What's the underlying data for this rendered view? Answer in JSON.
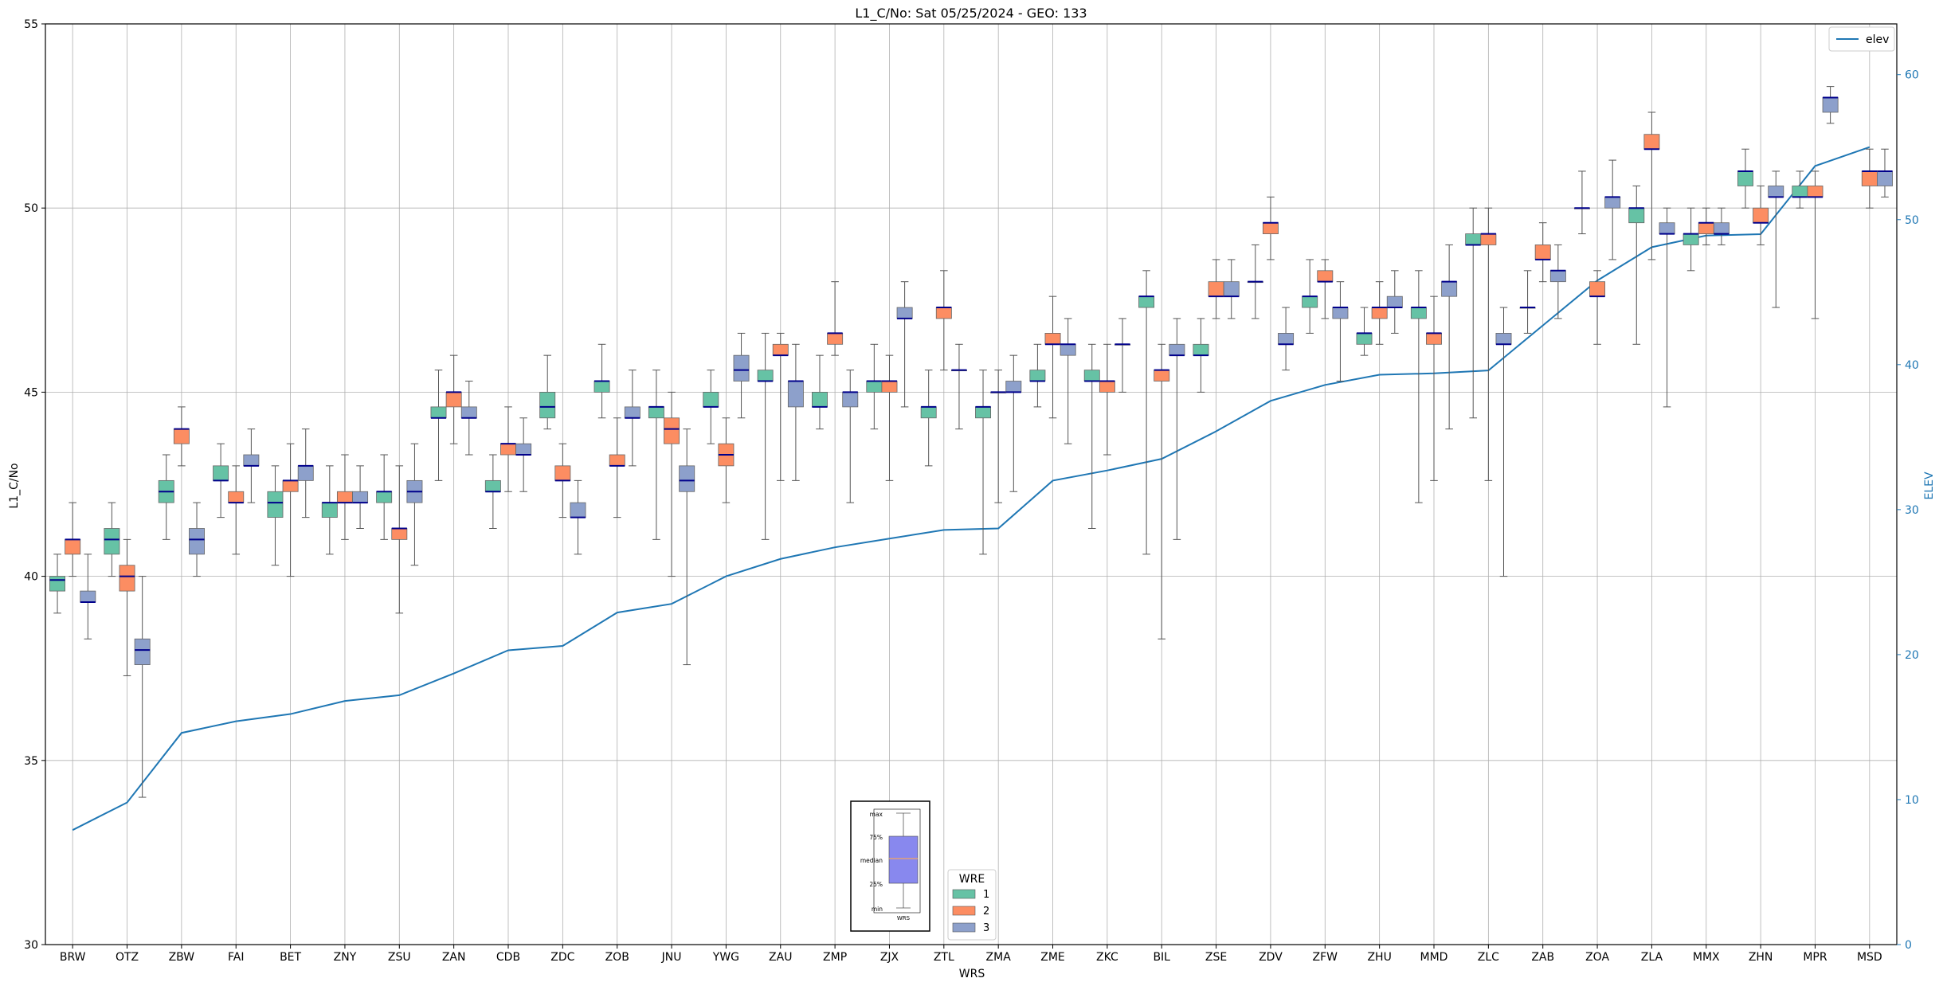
{
  "chart_data": {
    "type": "box",
    "title": "L1_C/No: Sat 05/25/2024 - GEO: 133",
    "xlabel": "WRS",
    "ylabel": "L1_C/No",
    "y2label": "ELEV",
    "ylim": [
      30,
      55
    ],
    "y2lim": [
      0,
      63.5
    ],
    "yticks": [
      30,
      35,
      40,
      45,
      50,
      55
    ],
    "y2ticks": [
      0,
      10,
      20,
      30,
      40,
      50,
      60
    ],
    "grid": true,
    "categories": [
      "BRW",
      "OTZ",
      "ZBW",
      "FAI",
      "BET",
      "ZNY",
      "ZSU",
      "ZAN",
      "CDB",
      "ZDC",
      "ZOB",
      "JNU",
      "YWG",
      "ZAU",
      "ZMP",
      "ZJX",
      "ZTL",
      "ZMA",
      "ZME",
      "ZKC",
      "BIL",
      "ZSE",
      "ZDV",
      "ZFW",
      "ZHU",
      "MMD",
      "ZLC",
      "ZAB",
      "ZOA",
      "ZLA",
      "MMX",
      "ZHN",
      "MPR",
      "MSD"
    ],
    "wre_colors": {
      "1": "#66c2a5",
      "2": "#fc8d62",
      "3": "#8da0cb"
    },
    "median_color": "#00008b",
    "elev_color": "#1f77b4",
    "elev_series": {
      "name": "elev",
      "values": [
        7.9,
        9.8,
        14.6,
        15.4,
        15.9,
        16.8,
        17.2,
        18.7,
        20.3,
        20.6,
        22.9,
        23.5,
        25.4,
        26.6,
        27.4,
        28.0,
        28.6,
        28.7,
        32.0,
        32.7,
        33.5,
        35.4,
        37.5,
        38.6,
        39.3,
        39.4,
        39.6,
        42.7,
        45.8,
        48.1,
        48.9,
        49.0,
        53.7,
        55.0
      ]
    },
    "boxes": [
      {
        "site": "BRW",
        "wre": 1,
        "min": 39.0,
        "q1": 39.6,
        "median": 39.9,
        "q3": 40.0,
        "max": 40.6
      },
      {
        "site": "BRW",
        "wre": 2,
        "min": 40.0,
        "q1": 40.6,
        "median": 41.0,
        "q3": 41.0,
        "max": 42.0
      },
      {
        "site": "BRW",
        "wre": 3,
        "min": 38.3,
        "q1": 39.3,
        "median": 39.3,
        "q3": 39.6,
        "max": 40.6
      },
      {
        "site": "OTZ",
        "wre": 1,
        "min": 40.0,
        "q1": 40.6,
        "median": 41.0,
        "q3": 41.3,
        "max": 42.0
      },
      {
        "site": "OTZ",
        "wre": 2,
        "min": 37.3,
        "q1": 39.6,
        "median": 40.0,
        "q3": 40.3,
        "max": 41.0
      },
      {
        "site": "OTZ",
        "wre": 3,
        "min": 34.0,
        "q1": 37.6,
        "median": 38.0,
        "q3": 38.3,
        "max": 40.0
      },
      {
        "site": "ZBW",
        "wre": 1,
        "min": 41.0,
        "q1": 42.0,
        "median": 42.3,
        "q3": 42.6,
        "max": 43.3
      },
      {
        "site": "ZBW",
        "wre": 2,
        "min": 43.0,
        "q1": 43.6,
        "median": 44.0,
        "q3": 44.0,
        "max": 44.6
      },
      {
        "site": "ZBW",
        "wre": 3,
        "min": 40.0,
        "q1": 40.6,
        "median": 41.0,
        "q3": 41.3,
        "max": 42.0
      },
      {
        "site": "FAI",
        "wre": 1,
        "min": 41.6,
        "q1": 42.6,
        "median": 42.6,
        "q3": 43.0,
        "max": 43.6
      },
      {
        "site": "FAI",
        "wre": 2,
        "min": 40.6,
        "q1": 42.0,
        "median": 42.0,
        "q3": 42.3,
        "max": 43.0
      },
      {
        "site": "FAI",
        "wre": 3,
        "min": 42.0,
        "q1": 43.0,
        "median": 43.0,
        "q3": 43.3,
        "max": 44.0
      },
      {
        "site": "BET",
        "wre": 1,
        "min": 40.3,
        "q1": 41.6,
        "median": 42.0,
        "q3": 42.3,
        "max": 43.0
      },
      {
        "site": "BET",
        "wre": 2,
        "min": 40.0,
        "q1": 42.3,
        "median": 42.6,
        "q3": 42.6,
        "max": 43.6
      },
      {
        "site": "BET",
        "wre": 3,
        "min": 41.6,
        "q1": 42.6,
        "median": 43.0,
        "q3": 43.0,
        "max": 44.0
      },
      {
        "site": "ZNY",
        "wre": 1,
        "min": 40.6,
        "q1": 41.6,
        "median": 42.0,
        "q3": 42.0,
        "max": 43.0
      },
      {
        "site": "ZNY",
        "wre": 2,
        "min": 41.0,
        "q1": 42.0,
        "median": 42.0,
        "q3": 42.3,
        "max": 43.3
      },
      {
        "site": "ZNY",
        "wre": 3,
        "min": 41.3,
        "q1": 42.0,
        "median": 42.0,
        "q3": 42.3,
        "max": 43.0
      },
      {
        "site": "ZSU",
        "wre": 1,
        "min": 41.0,
        "q1": 42.0,
        "median": 42.3,
        "q3": 42.3,
        "max": 43.3
      },
      {
        "site": "ZSU",
        "wre": 2,
        "min": 39.0,
        "q1": 41.0,
        "median": 41.3,
        "q3": 41.3,
        "max": 43.0
      },
      {
        "site": "ZSU",
        "wre": 3,
        "min": 40.3,
        "q1": 42.0,
        "median": 42.3,
        "q3": 42.6,
        "max": 43.6
      },
      {
        "site": "ZAN",
        "wre": 1,
        "min": 42.6,
        "q1": 44.3,
        "median": 44.3,
        "q3": 44.6,
        "max": 45.6
      },
      {
        "site": "ZAN",
        "wre": 2,
        "min": 43.6,
        "q1": 44.6,
        "median": 45.0,
        "q3": 45.0,
        "max": 46.0
      },
      {
        "site": "ZAN",
        "wre": 3,
        "min": 43.3,
        "q1": 44.3,
        "median": 44.3,
        "q3": 44.6,
        "max": 45.3
      },
      {
        "site": "CDB",
        "wre": 1,
        "min": 41.3,
        "q1": 42.3,
        "median": 42.3,
        "q3": 42.6,
        "max": 43.3
      },
      {
        "site": "CDB",
        "wre": 2,
        "min": 42.3,
        "q1": 43.3,
        "median": 43.6,
        "q3": 43.6,
        "max": 44.6
      },
      {
        "site": "CDB",
        "wre": 3,
        "min": 42.3,
        "q1": 43.3,
        "median": 43.3,
        "q3": 43.6,
        "max": 44.3
      },
      {
        "site": "ZDC",
        "wre": 1,
        "min": 44.0,
        "q1": 44.3,
        "median": 44.6,
        "q3": 45.0,
        "max": 46.0
      },
      {
        "site": "ZDC",
        "wre": 2,
        "min": 41.6,
        "q1": 42.6,
        "median": 42.6,
        "q3": 43.0,
        "max": 43.6
      },
      {
        "site": "ZDC",
        "wre": 3,
        "min": 40.6,
        "q1": 41.6,
        "median": 41.6,
        "q3": 42.0,
        "max": 42.6
      },
      {
        "site": "ZOB",
        "wre": 1,
        "min": 44.3,
        "q1": 45.0,
        "median": 45.3,
        "q3": 45.3,
        "max": 46.3
      },
      {
        "site": "ZOB",
        "wre": 2,
        "min": 41.6,
        "q1": 43.0,
        "median": 43.0,
        "q3": 43.3,
        "max": 44.3
      },
      {
        "site": "ZOB",
        "wre": 3,
        "min": 43.0,
        "q1": 44.3,
        "median": 44.3,
        "q3": 44.6,
        "max": 45.6
      },
      {
        "site": "JNU",
        "wre": 1,
        "min": 41.0,
        "q1": 44.3,
        "median": 44.6,
        "q3": 44.6,
        "max": 45.6
      },
      {
        "site": "JNU",
        "wre": 2,
        "min": 40.0,
        "q1": 43.6,
        "median": 44.0,
        "q3": 44.3,
        "max": 45.0
      },
      {
        "site": "JNU",
        "wre": 3,
        "min": 37.6,
        "q1": 42.3,
        "median": 42.6,
        "q3": 43.0,
        "max": 44.0
      },
      {
        "site": "YWG",
        "wre": 1,
        "min": 43.6,
        "q1": 44.6,
        "median": 44.6,
        "q3": 45.0,
        "max": 45.6
      },
      {
        "site": "YWG",
        "wre": 2,
        "min": 42.0,
        "q1": 43.0,
        "median": 43.3,
        "q3": 43.6,
        "max": 44.3
      },
      {
        "site": "YWG",
        "wre": 3,
        "min": 44.3,
        "q1": 45.3,
        "median": 45.6,
        "q3": 46.0,
        "max": 46.6
      },
      {
        "site": "ZAU",
        "wre": 1,
        "min": 41.0,
        "q1": 45.3,
        "median": 45.3,
        "q3": 45.6,
        "max": 46.6
      },
      {
        "site": "ZAU",
        "wre": 2,
        "min": 42.6,
        "q1": 46.0,
        "median": 46.0,
        "q3": 46.3,
        "max": 46.6
      },
      {
        "site": "ZAU",
        "wre": 3,
        "min": 42.6,
        "q1": 44.6,
        "median": 45.3,
        "q3": 45.3,
        "max": 46.3
      },
      {
        "site": "ZMP",
        "wre": 1,
        "min": 44.0,
        "q1": 44.6,
        "median": 44.6,
        "q3": 45.0,
        "max": 46.0
      },
      {
        "site": "ZMP",
        "wre": 2,
        "min": 46.0,
        "q1": 46.3,
        "median": 46.6,
        "q3": 46.6,
        "max": 48.0
      },
      {
        "site": "ZMP",
        "wre": 3,
        "min": 42.0,
        "q1": 44.6,
        "median": 45.0,
        "q3": 45.0,
        "max": 45.6
      },
      {
        "site": "ZJX",
        "wre": 1,
        "min": 44.0,
        "q1": 45.0,
        "median": 45.3,
        "q3": 45.3,
        "max": 46.3
      },
      {
        "site": "ZJX",
        "wre": 2,
        "min": 42.6,
        "q1": 45.0,
        "median": 45.3,
        "q3": 45.3,
        "max": 46.0
      },
      {
        "site": "ZJX",
        "wre": 3,
        "min": 44.6,
        "q1": 47.0,
        "median": 47.0,
        "q3": 47.3,
        "max": 48.0
      },
      {
        "site": "ZTL",
        "wre": 1,
        "min": 43.0,
        "q1": 44.3,
        "median": 44.6,
        "q3": 44.6,
        "max": 45.6
      },
      {
        "site": "ZTL",
        "wre": 2,
        "min": 45.6,
        "q1": 47.0,
        "median": 47.3,
        "q3": 47.3,
        "max": 48.3
      },
      {
        "site": "ZTL",
        "wre": 3,
        "min": 44.0,
        "q1": 45.6,
        "median": 45.6,
        "q3": 45.6,
        "max": 46.3
      },
      {
        "site": "ZMA",
        "wre": 1,
        "min": 40.6,
        "q1": 44.3,
        "median": 44.6,
        "q3": 44.6,
        "max": 45.6
      },
      {
        "site": "ZMA",
        "wre": 2,
        "min": 42.0,
        "q1": 45.0,
        "median": 45.0,
        "q3": 45.0,
        "max": 45.6
      },
      {
        "site": "ZMA",
        "wre": 3,
        "min": 42.3,
        "q1": 45.0,
        "median": 45.0,
        "q3": 45.3,
        "max": 46.0
      },
      {
        "site": "ZME",
        "wre": 1,
        "min": 44.6,
        "q1": 45.3,
        "median": 45.3,
        "q3": 45.6,
        "max": 46.3
      },
      {
        "site": "ZME",
        "wre": 2,
        "min": 44.3,
        "q1": 46.3,
        "median": 46.3,
        "q3": 46.6,
        "max": 47.6
      },
      {
        "site": "ZME",
        "wre": 3,
        "min": 43.6,
        "q1": 46.0,
        "median": 46.3,
        "q3": 46.3,
        "max": 47.0
      },
      {
        "site": "ZKC",
        "wre": 1,
        "min": 41.3,
        "q1": 45.3,
        "median": 45.3,
        "q3": 45.6,
        "max": 46.3
      },
      {
        "site": "ZKC",
        "wre": 2,
        "min": 43.3,
        "q1": 45.0,
        "median": 45.3,
        "q3": 45.3,
        "max": 46.3
      },
      {
        "site": "ZKC",
        "wre": 3,
        "min": 45.0,
        "q1": 46.3,
        "median": 46.3,
        "q3": 46.3,
        "max": 47.0
      },
      {
        "site": "BIL",
        "wre": 1,
        "min": 40.6,
        "q1": 47.3,
        "median": 47.6,
        "q3": 47.6,
        "max": 48.3
      },
      {
        "site": "BIL",
        "wre": 2,
        "min": 38.3,
        "q1": 45.3,
        "median": 45.6,
        "q3": 45.6,
        "max": 46.3
      },
      {
        "site": "BIL",
        "wre": 3,
        "min": 41.0,
        "q1": 46.0,
        "median": 46.0,
        "q3": 46.3,
        "max": 47.0
      },
      {
        "site": "ZSE",
        "wre": 1,
        "min": 45.0,
        "q1": 46.0,
        "median": 46.0,
        "q3": 46.3,
        "max": 47.0
      },
      {
        "site": "ZSE",
        "wre": 2,
        "min": 47.0,
        "q1": 47.6,
        "median": 47.6,
        "q3": 48.0,
        "max": 48.6
      },
      {
        "site": "ZSE",
        "wre": 3,
        "min": 47.0,
        "q1": 47.6,
        "median": 47.6,
        "q3": 48.0,
        "max": 48.6
      },
      {
        "site": "ZDV",
        "wre": 1,
        "min": 47.0,
        "q1": 48.0,
        "median": 48.0,
        "q3": 48.0,
        "max": 49.0
      },
      {
        "site": "ZDV",
        "wre": 2,
        "min": 48.6,
        "q1": 49.3,
        "median": 49.6,
        "q3": 49.6,
        "max": 50.3
      },
      {
        "site": "ZDV",
        "wre": 3,
        "min": 45.6,
        "q1": 46.3,
        "median": 46.3,
        "q3": 46.6,
        "max": 47.3
      },
      {
        "site": "ZFW",
        "wre": 1,
        "min": 46.6,
        "q1": 47.3,
        "median": 47.6,
        "q3": 47.6,
        "max": 48.6
      },
      {
        "site": "ZFW",
        "wre": 2,
        "min": 47.0,
        "q1": 48.0,
        "median": 48.0,
        "q3": 48.3,
        "max": 48.6
      },
      {
        "site": "ZFW",
        "wre": 3,
        "min": 45.3,
        "q1": 47.0,
        "median": 47.3,
        "q3": 47.3,
        "max": 48.0
      },
      {
        "site": "ZHU",
        "wre": 1,
        "min": 46.0,
        "q1": 46.3,
        "median": 46.6,
        "q3": 46.6,
        "max": 47.3
      },
      {
        "site": "ZHU",
        "wre": 2,
        "min": 46.3,
        "q1": 47.0,
        "median": 47.3,
        "q3": 47.3,
        "max": 48.0
      },
      {
        "site": "ZHU",
        "wre": 3,
        "min": 46.6,
        "q1": 47.3,
        "median": 47.3,
        "q3": 47.6,
        "max": 48.3
      },
      {
        "site": "MMD",
        "wre": 1,
        "min": 42.0,
        "q1": 47.0,
        "median": 47.3,
        "q3": 47.3,
        "max": 48.3
      },
      {
        "site": "MMD",
        "wre": 2,
        "min": 42.6,
        "q1": 46.3,
        "median": 46.6,
        "q3": 46.6,
        "max": 47.6
      },
      {
        "site": "MMD",
        "wre": 3,
        "min": 44.0,
        "q1": 47.6,
        "median": 48.0,
        "q3": 48.0,
        "max": 49.0
      },
      {
        "site": "ZLC",
        "wre": 1,
        "min": 44.3,
        "q1": 49.0,
        "median": 49.0,
        "q3": 49.3,
        "max": 50.0
      },
      {
        "site": "ZLC",
        "wre": 2,
        "min": 42.6,
        "q1": 49.0,
        "median": 49.3,
        "q3": 49.3,
        "max": 50.0
      },
      {
        "site": "ZLC",
        "wre": 3,
        "min": 40.0,
        "q1": 46.3,
        "median": 46.3,
        "q3": 46.6,
        "max": 47.3
      },
      {
        "site": "ZAB",
        "wre": 1,
        "min": 46.6,
        "q1": 47.3,
        "median": 47.3,
        "q3": 47.3,
        "max": 48.3
      },
      {
        "site": "ZAB",
        "wre": 2,
        "min": 48.0,
        "q1": 48.6,
        "median": 48.6,
        "q3": 49.0,
        "max": 49.6
      },
      {
        "site": "ZAB",
        "wre": 3,
        "min": 47.0,
        "q1": 48.0,
        "median": 48.3,
        "q3": 48.3,
        "max": 49.0
      },
      {
        "site": "ZOA",
        "wre": 1,
        "min": 49.3,
        "q1": 50.0,
        "median": 50.0,
        "q3": 50.0,
        "max": 51.0
      },
      {
        "site": "ZOA",
        "wre": 2,
        "min": 46.3,
        "q1": 47.6,
        "median": 47.6,
        "q3": 48.0,
        "max": 48.3
      },
      {
        "site": "ZOA",
        "wre": 3,
        "min": 48.6,
        "q1": 50.0,
        "median": 50.3,
        "q3": 50.3,
        "max": 51.3
      },
      {
        "site": "ZLA",
        "wre": 1,
        "min": 46.3,
        "q1": 49.6,
        "median": 50.0,
        "q3": 50.0,
        "max": 50.6
      },
      {
        "site": "ZLA",
        "wre": 2,
        "min": 48.6,
        "q1": 51.6,
        "median": 51.6,
        "q3": 52.0,
        "max": 52.6
      },
      {
        "site": "ZLA",
        "wre": 3,
        "min": 44.6,
        "q1": 49.3,
        "median": 49.3,
        "q3": 49.6,
        "max": 50.0
      },
      {
        "site": "MMX",
        "wre": 1,
        "min": 48.3,
        "q1": 49.0,
        "median": 49.3,
        "q3": 49.3,
        "max": 50.0
      },
      {
        "site": "MMX",
        "wre": 2,
        "min": 49.0,
        "q1": 49.3,
        "median": 49.6,
        "q3": 49.6,
        "max": 50.0
      },
      {
        "site": "MMX",
        "wre": 3,
        "min": 49.0,
        "q1": 49.3,
        "median": 49.3,
        "q3": 49.6,
        "max": 50.0
      },
      {
        "site": "ZHN",
        "wre": 1,
        "min": 50.0,
        "q1": 50.6,
        "median": 51.0,
        "q3": 51.0,
        "max": 51.6
      },
      {
        "site": "ZHN",
        "wre": 2,
        "min": 49.0,
        "q1": 49.6,
        "median": 49.6,
        "q3": 50.0,
        "max": 50.6
      },
      {
        "site": "ZHN",
        "wre": 3,
        "min": 47.3,
        "q1": 50.3,
        "median": 50.3,
        "q3": 50.6,
        "max": 51.0
      },
      {
        "site": "MPR",
        "wre": 1,
        "min": 50.0,
        "q1": 50.3,
        "median": 50.3,
        "q3": 50.6,
        "max": 51.0
      },
      {
        "site": "MPR",
        "wre": 2,
        "min": 47.0,
        "q1": 50.3,
        "median": 50.3,
        "q3": 50.6,
        "max": 51.0
      },
      {
        "site": "MPR",
        "wre": 3,
        "min": 52.3,
        "q1": 52.6,
        "median": 53.0,
        "q3": 53.0,
        "max": 53.3
      },
      {
        "site": "MSD",
        "wre": 2,
        "min": 50.0,
        "q1": 50.6,
        "median": 51.0,
        "q3": 51.0,
        "max": 51.6
      },
      {
        "site": "MSD",
        "wre": 3,
        "min": 50.3,
        "q1": 50.6,
        "median": 51.0,
        "q3": 51.0,
        "max": 51.6
      }
    ],
    "legend_elev": {
      "position": "top-right",
      "label": "elev"
    },
    "legend_wre": {
      "position": "bottom-center",
      "title": "WRE",
      "entries": [
        "1",
        "2",
        "3"
      ]
    },
    "key_inset": {
      "labels": [
        "max",
        "75%",
        "median",
        "25%",
        "min"
      ],
      "xlabel": "WRS",
      "box_color": "#8888ee",
      "median_color": "#f4a460"
    }
  }
}
